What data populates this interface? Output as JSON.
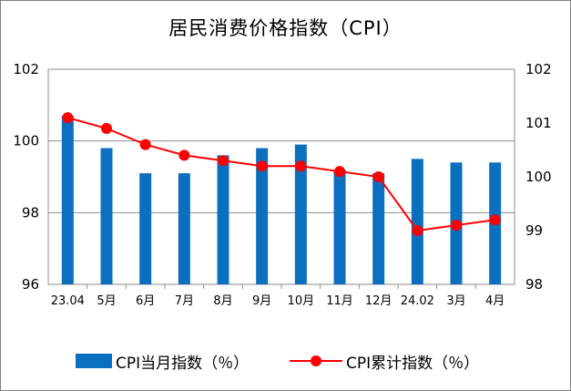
{
  "chart_data": {
    "type": "bar+line",
    "title": "居民消费价格指数（CPI）",
    "categories": [
      "23.04",
      "5月",
      "6月",
      "7月",
      "8月",
      "9月",
      "10月",
      "11月",
      "12月",
      "24.02",
      "3月",
      "4月"
    ],
    "series": [
      {
        "name": "CPI当月指数（％）",
        "type": "bar",
        "axis": "left",
        "color": "#0b6fbf",
        "values": [
          100.7,
          99.8,
          99.1,
          99.1,
          99.6,
          99.8,
          99.9,
          99.2,
          99.1,
          99.5,
          99.4,
          99.4
        ]
      },
      {
        "name": "CPI累计指数（％）",
        "type": "line",
        "axis": "right",
        "color": "#ff0000",
        "values": [
          101.1,
          100.9,
          100.6,
          100.4,
          100.3,
          100.2,
          100.2,
          100.1,
          100.0,
          99.0,
          99.1,
          99.2
        ]
      }
    ],
    "left_axis": {
      "ylim": [
        96,
        102
      ],
      "ticks": [
        "96",
        "98",
        "100",
        "102"
      ]
    },
    "right_axis": {
      "ylim": [
        98,
        102
      ],
      "ticks": [
        "98",
        "99",
        "100",
        "101",
        "102"
      ]
    },
    "grid": "horizontal, left-axis ticks",
    "legend_position": "bottom"
  }
}
